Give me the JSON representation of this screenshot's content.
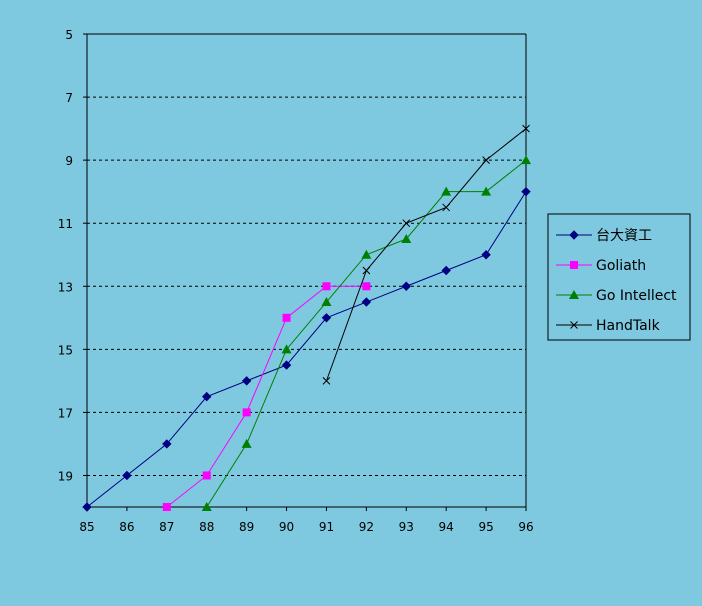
{
  "chart_data": {
    "type": "line",
    "title": "",
    "xlabel": "",
    "ylabel": "",
    "x": [
      85,
      86,
      87,
      88,
      89,
      90,
      91,
      92,
      93,
      94,
      95,
      96
    ],
    "xlim": [
      85,
      96
    ],
    "ylim": [
      5,
      20
    ],
    "y_inverted": true,
    "yticks": [
      5,
      7,
      9,
      11,
      13,
      15,
      17,
      19
    ],
    "grid": "horizontal dashed",
    "legend_position": "right",
    "series": [
      {
        "name": "台大資工",
        "color": "#000080",
        "marker": "diamond",
        "points": [
          [
            85,
            20
          ],
          [
            86,
            19
          ],
          [
            87,
            18
          ],
          [
            88,
            16.5
          ],
          [
            89,
            16
          ],
          [
            90,
            15.5
          ],
          [
            91,
            14
          ],
          [
            92,
            13.5
          ],
          [
            93,
            13
          ],
          [
            94,
            12.5
          ],
          [
            95,
            12
          ],
          [
            96,
            10
          ]
        ]
      },
      {
        "name": "Goliath",
        "color": "#ff00ff",
        "marker": "square",
        "points": [
          [
            87,
            20
          ],
          [
            88,
            19
          ],
          [
            89,
            17
          ],
          [
            90,
            14
          ],
          [
            91,
            13
          ],
          [
            92,
            13
          ]
        ]
      },
      {
        "name": "Go Intellect",
        "color": "#008000",
        "marker": "triangle",
        "points": [
          [
            88,
            20
          ],
          [
            89,
            18
          ],
          [
            90,
            15
          ],
          [
            91,
            13.5
          ],
          [
            92,
            12
          ],
          [
            93,
            11.5
          ],
          [
            94,
            10
          ],
          [
            95,
            10
          ],
          [
            96,
            9
          ]
        ]
      },
      {
        "name": "HandTalk",
        "color": "#000000",
        "marker": "x",
        "points": [
          [
            91,
            16
          ],
          [
            92,
            12.5
          ],
          [
            93,
            11
          ],
          [
            94,
            10.5
          ],
          [
            95,
            9
          ],
          [
            96,
            8
          ]
        ]
      }
    ]
  }
}
